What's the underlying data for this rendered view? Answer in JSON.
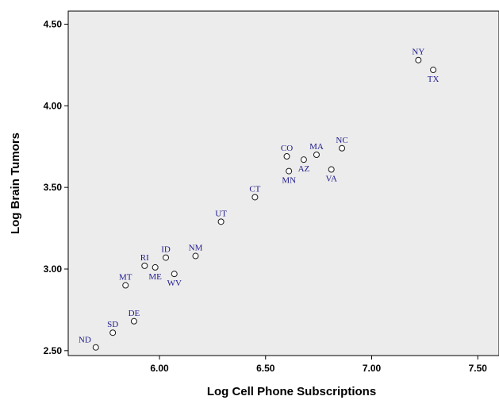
{
  "chart_data": {
    "type": "scatter",
    "xlabel": "Log Cell Phone Subscriptions",
    "ylabel": "Log Brain Tumors",
    "xlim": [
      5.57,
      7.6
    ],
    "ylim": [
      2.47,
      4.58
    ],
    "x_ticks": [
      6.0,
      6.5,
      7.0,
      7.5
    ],
    "x_tick_labels": [
      "6.00",
      "6.50",
      "7.00",
      "7.50"
    ],
    "y_ticks": [
      2.5,
      3.0,
      3.5,
      4.0,
      4.5
    ],
    "y_tick_labels": [
      "2.50",
      "3.00",
      "3.50",
      "4.00",
      "4.50"
    ],
    "grid": false,
    "plot_background": "#ececec",
    "marker_color": "#1a1a1a",
    "label_color": "#1f1a8c",
    "points": [
      {
        "label": "ND",
        "x": 5.7,
        "y": 2.52,
        "pos": "tl"
      },
      {
        "label": "SD",
        "x": 5.78,
        "y": 2.61,
        "pos": "t"
      },
      {
        "label": "DE",
        "x": 5.88,
        "y": 2.68,
        "pos": "t"
      },
      {
        "label": "MT",
        "x": 5.84,
        "y": 2.9,
        "pos": "t"
      },
      {
        "label": "RI",
        "x": 5.93,
        "y": 3.02,
        "pos": "t"
      },
      {
        "label": "ME",
        "x": 5.98,
        "y": 3.01,
        "pos": "b"
      },
      {
        "label": "ID",
        "x": 6.03,
        "y": 3.07,
        "pos": "t"
      },
      {
        "label": "WV",
        "x": 6.07,
        "y": 2.97,
        "pos": "b"
      },
      {
        "label": "NM",
        "x": 6.17,
        "y": 3.08,
        "pos": "t"
      },
      {
        "label": "UT",
        "x": 6.29,
        "y": 3.29,
        "pos": "t"
      },
      {
        "label": "CT",
        "x": 6.45,
        "y": 3.44,
        "pos": "t"
      },
      {
        "label": "CO",
        "x": 6.6,
        "y": 3.69,
        "pos": "t"
      },
      {
        "label": "MN",
        "x": 6.61,
        "y": 3.6,
        "pos": "b"
      },
      {
        "label": "AZ",
        "x": 6.68,
        "y": 3.67,
        "pos": "b"
      },
      {
        "label": "MA",
        "x": 6.74,
        "y": 3.7,
        "pos": "t"
      },
      {
        "label": "VA",
        "x": 6.81,
        "y": 3.61,
        "pos": "b"
      },
      {
        "label": "NC",
        "x": 6.86,
        "y": 3.74,
        "pos": "t"
      },
      {
        "label": "NY",
        "x": 7.22,
        "y": 4.28,
        "pos": "t"
      },
      {
        "label": "TX",
        "x": 7.29,
        "y": 4.22,
        "pos": "b"
      }
    ]
  }
}
